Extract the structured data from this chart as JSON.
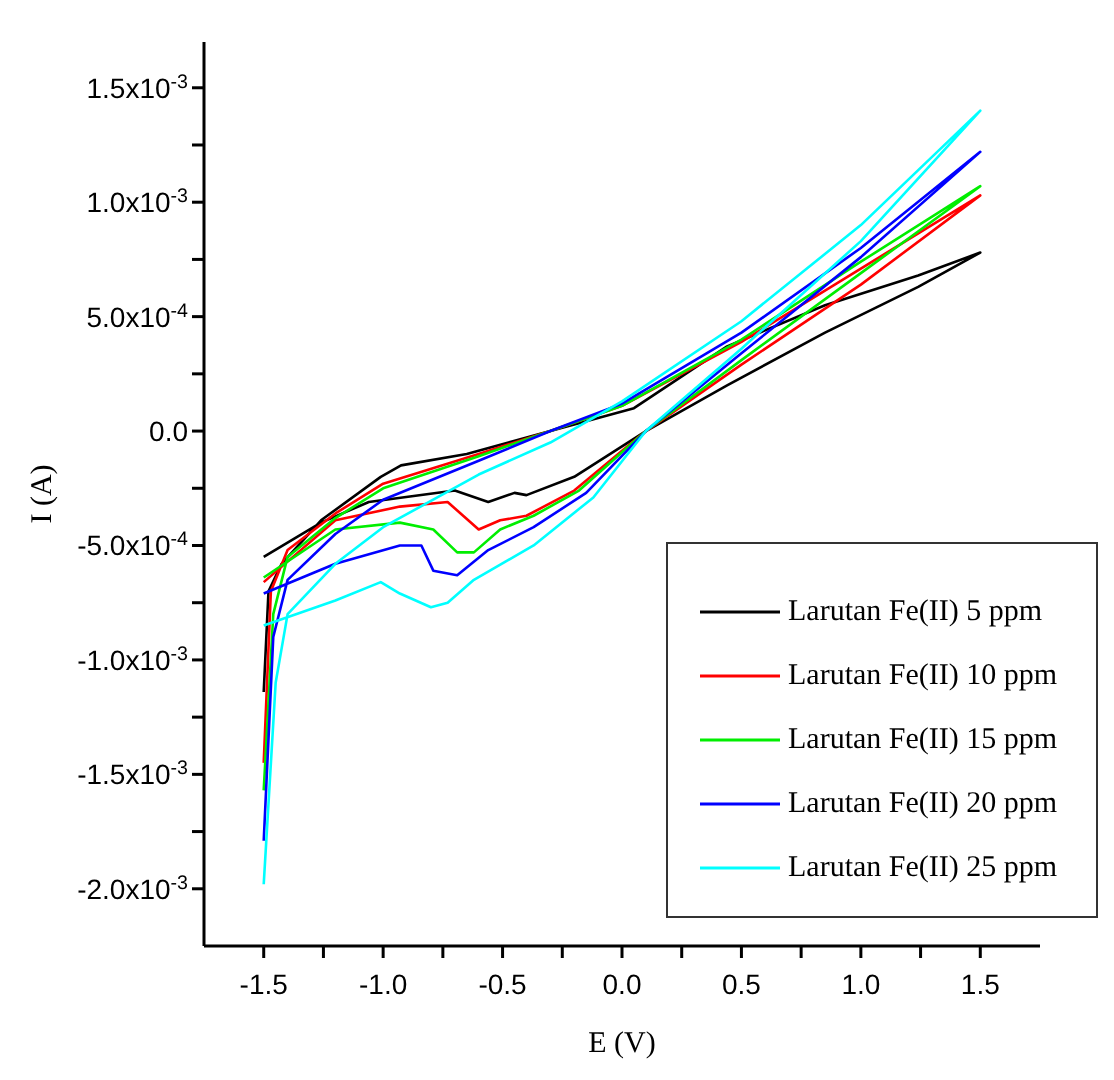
{
  "chart_data": {
    "type": "line",
    "xlabel": "E (V)",
    "ylabel": "I (A)",
    "xlim": [
      -1.75,
      1.75
    ],
    "xticks": [
      -1.5,
      {
        "value": -1.25,
        "label": null
      },
      {
        "value": -1,
        "label": "-1.0"
      },
      {
        "value": -0.75,
        "label": null
      },
      -0.5,
      {
        "value": -0.25,
        "label": null
      },
      {
        "value": 0,
        "label": "0.0"
      },
      {
        "value": 0.25,
        "label": null
      },
      0.5,
      {
        "value": 0.75,
        "label": null
      },
      {
        "value": 1,
        "label": "1.0"
      },
      {
        "value": 1.25,
        "label": null
      },
      1.5
    ],
    "ylim": [
      -0.00225,
      0.0017
    ],
    "yticks": [
      {
        "value": -0.002,
        "label": "-2.0x10$^{-3}$"
      },
      {
        "value": -0.00175,
        "label": null
      },
      {
        "value": -0.0015,
        "label": "-1.5x10$^{-3}$"
      },
      {
        "value": -0.00125,
        "label": null
      },
      {
        "value": -0.001,
        "label": "-1.0x10$^{-3}$"
      },
      {
        "value": -0.00075,
        "label": null
      },
      {
        "value": -0.0005,
        "label": "-5.0x10$^{-4}$"
      },
      {
        "value": -0.00025,
        "label": null
      },
      {
        "value": 0,
        "label": "0.0"
      },
      {
        "value": 0.00025,
        "label": null
      },
      {
        "value": 0.0005,
        "label": "5.0x10$^{-4}$"
      },
      {
        "value": 0.00075,
        "label": null
      },
      {
        "value": 0.001,
        "label": "1.0x10$^{-3}$"
      },
      {
        "value": 0.00125,
        "label": null
      },
      {
        "value": 0.0015,
        "label": "1.5x10$^{-3}$"
      }
    ],
    "grid": false,
    "legend": "bottom right",
    "marker": "none",
    "line_style": "solid",
    "series": [
      {
        "name": "Larutan Fe(II) 5 ppm",
        "color": "#000000",
        "x": [
          -1.5,
          -1.48,
          -1.425,
          -1.26,
          -1.01,
          -0.925,
          -0.65,
          -0.3,
          0.05,
          0.44,
          0.85,
          1.24,
          1.5,
          1.24,
          0.85,
          0.44,
          0.1,
          -0.2,
          -0.4,
          -0.45,
          -0.56,
          -0.7,
          -1.06,
          -1.26,
          -1.5
        ],
        "values": [
          -0.00114,
          -0.0007,
          -0.00058,
          -0.00039,
          -0.0002,
          -0.00015,
          -0.0001,
          0,
          0.0001,
          0.00037,
          0.00055,
          0.00068,
          0.00078,
          0.00063,
          0.00043,
          0.0002,
          0,
          -0.0002,
          -0.00028,
          -0.00027,
          -0.00031,
          -0.00026,
          -0.00031,
          -0.0004,
          -0.00055
        ]
      },
      {
        "name": "Larutan Fe(II) 10 ppm",
        "color": "#ff0000",
        "x": [
          -1.5,
          -1.47,
          -1.4,
          -1.2,
          -1.0,
          -0.6,
          -0.3,
          0.0,
          0.5,
          1.0,
          1.5,
          1.0,
          0.5,
          0.1,
          -0.2,
          -0.4,
          -0.51,
          -0.6,
          -0.73,
          -0.93,
          -1.2,
          -1.5
        ],
        "values": [
          -0.00145,
          -0.0007,
          -0.00052,
          -0.00036,
          -0.00023,
          -0.0001,
          0,
          0.00011,
          0.00039,
          0.00071,
          0.00103,
          0.00064,
          0.00029,
          0,
          -0.00026,
          -0.00037,
          -0.00039,
          -0.00043,
          -0.00031,
          -0.00033,
          -0.00039,
          -0.00066
        ]
      },
      {
        "name": "Larutan Fe(II) 15 ppm",
        "color": "#00ee00",
        "x": [
          -1.5,
          -1.46,
          -1.4,
          -1.2,
          -1.0,
          -0.6,
          -0.3,
          0.0,
          0.5,
          1.0,
          1.5,
          1.0,
          0.5,
          0.1,
          -0.18,
          -0.37,
          -0.51,
          -0.62,
          -0.69,
          -0.79,
          -0.93,
          -1.2,
          -1.5
        ],
        "values": [
          -0.00157,
          -0.0008,
          -0.00055,
          -0.00038,
          -0.00025,
          -0.00011,
          0,
          0.00011,
          0.0004,
          0.00074,
          0.00107,
          0.00069,
          0.00031,
          0,
          -0.00026,
          -0.00037,
          -0.00043,
          -0.00053,
          -0.00053,
          -0.00043,
          -0.0004,
          -0.00043,
          -0.00064
        ]
      },
      {
        "name": "Larutan Fe(II) 20 ppm",
        "color": "#0000ff",
        "x": [
          -1.5,
          -1.46,
          -1.4,
          -1.2,
          -1.0,
          -0.6,
          -0.3,
          0.0,
          0.5,
          1.0,
          1.5,
          1.0,
          0.5,
          0.1,
          -0.15,
          -0.37,
          -0.56,
          -0.69,
          -0.79,
          -0.84,
          -0.93,
          -1.2,
          -1.5
        ],
        "values": [
          -0.00179,
          -0.0009,
          -0.00065,
          -0.00045,
          -0.0003,
          -0.00013,
          0,
          0.00012,
          0.00043,
          0.0008,
          0.00122,
          0.00076,
          0.00034,
          0,
          -0.00027,
          -0.00042,
          -0.00052,
          -0.00063,
          -0.00061,
          -0.0005,
          -0.0005,
          -0.00058,
          -0.00071
        ]
      },
      {
        "name": "Larutan Fe(II) 25 ppm",
        "color": "#00ffff",
        "x": [
          -1.5,
          -1.45,
          -1.4,
          -1.2,
          -1.0,
          -0.6,
          -0.3,
          0.0,
          0.5,
          1.0,
          1.5,
          1.0,
          0.5,
          0.1,
          -0.12,
          -0.37,
          -0.62,
          -0.73,
          -0.8,
          -0.93,
          -1.01,
          -1.2,
          -1.5
        ],
        "values": [
          -0.00198,
          -0.0011,
          -0.0008,
          -0.00058,
          -0.00042,
          -0.00019,
          -5e-05,
          0.00013,
          0.00048,
          0.0009,
          0.0014,
          0.00083,
          0.00036,
          0,
          -0.00029,
          -0.0005,
          -0.00065,
          -0.00075,
          -0.00077,
          -0.00071,
          -0.00066,
          -0.00074,
          -0.00085
        ]
      }
    ]
  }
}
